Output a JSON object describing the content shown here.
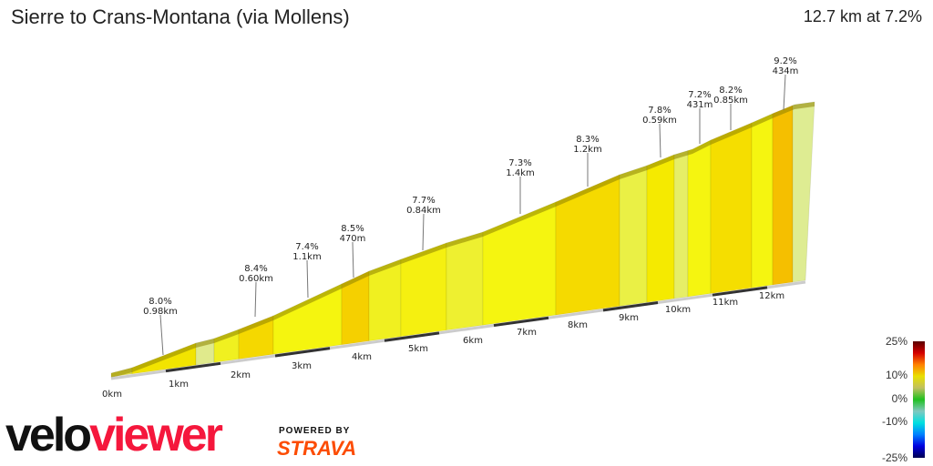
{
  "header": {
    "title": "Sierre to Crans-Montana (via Mollens)",
    "summary": "12.7 km at 7.2%"
  },
  "chart_data": {
    "type": "area",
    "title": "Sierre to Crans-Montana (via Mollens)",
    "distance_km": 12.7,
    "avg_gradient_pct": 7.2,
    "x_ticks": [
      "0km",
      "1km",
      "2km",
      "3km",
      "4km",
      "5km",
      "6km",
      "7km",
      "8km",
      "9km",
      "10km",
      "11km",
      "12km"
    ],
    "annotations": [
      {
        "gradient": "8.0%",
        "length": "0.98km"
      },
      {
        "gradient": "8.4%",
        "length": "0.60km"
      },
      {
        "gradient": "7.4%",
        "length": "1.1km"
      },
      {
        "gradient": "8.5%",
        "length": "470m"
      },
      {
        "gradient": "7.7%",
        "length": "0.84km"
      },
      {
        "gradient": "7.3%",
        "length": "1.4km"
      },
      {
        "gradient": "8.3%",
        "length": "1.2km"
      },
      {
        "gradient": "7.8%",
        "length": "0.59km"
      },
      {
        "gradient": "7.2%",
        "length": "431m"
      },
      {
        "gradient": "8.2%",
        "length": "0.85km"
      },
      {
        "gradient": "9.2%",
        "length": "434m"
      }
    ],
    "segment_colors": [
      "#e6e24a",
      "#f2e400",
      "#e0ea8c",
      "#f0f020",
      "#f5d800",
      "#f5f50f",
      "#f5d000",
      "#f0f020",
      "#f5f010",
      "#eef030",
      "#f5f510",
      "#f5da00",
      "#eaf045",
      "#f5ea00",
      "#e6ee66",
      "#f5f510",
      "#f5de00",
      "#f5f510",
      "#f5bf00",
      "#deec92"
    ],
    "legend": {
      "labels": [
        "25%",
        "10%",
        "0%",
        "-10%",
        "-25%"
      ],
      "colors": [
        "#5a0000",
        "#d40000",
        "#ff8000",
        "#e8e000",
        "#c0c060",
        "#20c020",
        "#80c8c0",
        "#00e0e0",
        "#0080ff",
        "#0000e0",
        "#000050"
      ]
    }
  },
  "branding": {
    "logo_velo": "velo",
    "logo_viewer": "viewer",
    "powered": "POWERED BY",
    "strava": "STRAVA"
  }
}
